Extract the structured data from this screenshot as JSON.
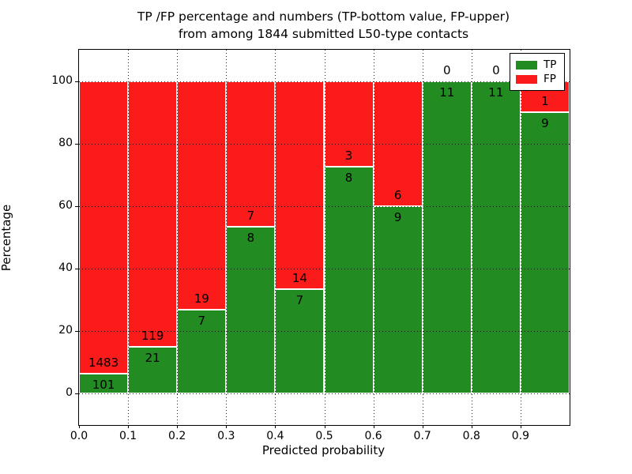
{
  "title": {
    "line1": "TP /FP percentage and numbers (TP-bottom value, FP-upper)",
    "line2": "from among 1844 submitted L50-type contacts"
  },
  "axes": {
    "xlabel": "Predicted probability",
    "ylabel": "Percentage",
    "xtick_labels": [
      "0.0",
      "0.1",
      "0.2",
      "0.3",
      "0.4",
      "0.5",
      "0.6",
      "0.7",
      "0.8",
      "0.9"
    ],
    "xtick_values": [
      0.0,
      0.1,
      0.2,
      0.3,
      0.4,
      0.5,
      0.6,
      0.7,
      0.8,
      0.9
    ],
    "ytick_labels": [
      "0",
      "20",
      "40",
      "60",
      "80",
      "100"
    ],
    "ytick_values": [
      0,
      20,
      40,
      60,
      80,
      100
    ]
  },
  "legend": {
    "position": "upper right",
    "items": [
      {
        "label": "TP",
        "color": "#228b22"
      },
      {
        "label": "FP",
        "color": "#fb1b1b"
      }
    ]
  },
  "colors": {
    "tp": "#228b22",
    "fp": "#fb1b1b",
    "background": "#ffffff",
    "axis": "#000000",
    "grid": "#000000"
  },
  "chart_data": {
    "type": "bar",
    "stacked": true,
    "normalized": "percent",
    "title": "TP /FP percentage and numbers (TP-bottom value, FP-upper) from among 1844 submitted L50-type contacts",
    "xlabel": "Predicted probability",
    "ylabel": "Percentage",
    "xlim": [
      0.0,
      1.0
    ],
    "ylim": [
      -10,
      110
    ],
    "grid": "dotted",
    "legend_position": "upper right",
    "total_contacts": 1844,
    "bin_width": 0.1,
    "bin_starts": [
      0.0,
      0.1,
      0.2,
      0.3,
      0.4,
      0.5,
      0.6,
      0.7,
      0.8,
      0.9
    ],
    "series": [
      {
        "name": "TP",
        "color": "#228b22",
        "values": [
          101,
          21,
          7,
          8,
          7,
          8,
          9,
          11,
          11,
          9
        ]
      },
      {
        "name": "FP",
        "color": "#fb1b1b",
        "values": [
          1483,
          119,
          19,
          7,
          14,
          3,
          6,
          0,
          0,
          1
        ]
      }
    ],
    "tp_percent": [
      6.4,
      15.0,
      26.9,
      53.3,
      33.3,
      72.7,
      60.0,
      100.0,
      100.0,
      90.0
    ]
  }
}
